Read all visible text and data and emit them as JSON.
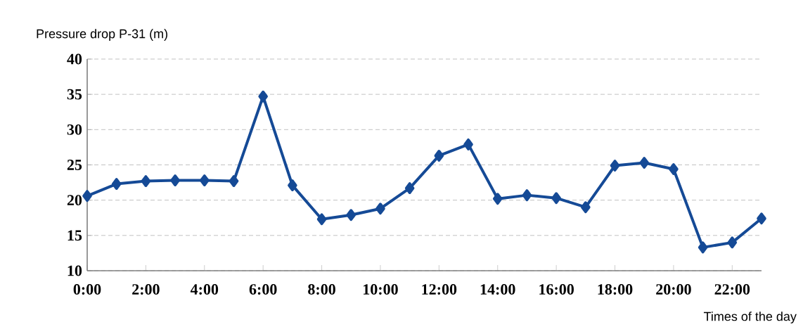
{
  "chart_data": {
    "type": "line",
    "ylabel": "Pressure drop P-31 (m)",
    "xlabel": "Times of the day",
    "x": [
      0,
      1,
      2,
      3,
      4,
      5,
      6,
      7,
      8,
      9,
      10,
      11,
      12,
      13,
      14,
      15,
      16,
      17,
      18,
      19,
      20,
      21,
      22,
      23
    ],
    "series": [
      {
        "color": "#154a96",
        "values": [
          20.6,
          22.3,
          22.7,
          22.8,
          22.8,
          22.7,
          34.7,
          22.1,
          17.3,
          17.9,
          18.8,
          21.7,
          26.3,
          27.9,
          20.2,
          20.7,
          20.3,
          19.0,
          24.9,
          25.3,
          24.4,
          13.3,
          14.0,
          17.4
        ]
      }
    ],
    "xlim": [
      0,
      23
    ],
    "xticks": [
      {
        "value": 0,
        "label": "0:00"
      },
      {
        "value": 2,
        "label": "2:00"
      },
      {
        "value": 4,
        "label": "4:00"
      },
      {
        "value": 6,
        "label": "6:00"
      },
      {
        "value": 8,
        "label": "8:00"
      },
      {
        "value": 10,
        "label": "10:00"
      },
      {
        "value": 12,
        "label": "12:00"
      },
      {
        "value": 14,
        "label": "14:00"
      },
      {
        "value": 16,
        "label": "16:00"
      },
      {
        "value": 18,
        "label": "18:00"
      },
      {
        "value": 20,
        "label": "20:00"
      },
      {
        "value": 22,
        "label": "22:00"
      }
    ],
    "ylim": [
      10,
      40
    ],
    "yticks": [
      10,
      15,
      20,
      25,
      30,
      35,
      40
    ],
    "grid": "y",
    "marker": "diamond",
    "line_style": "solid"
  }
}
